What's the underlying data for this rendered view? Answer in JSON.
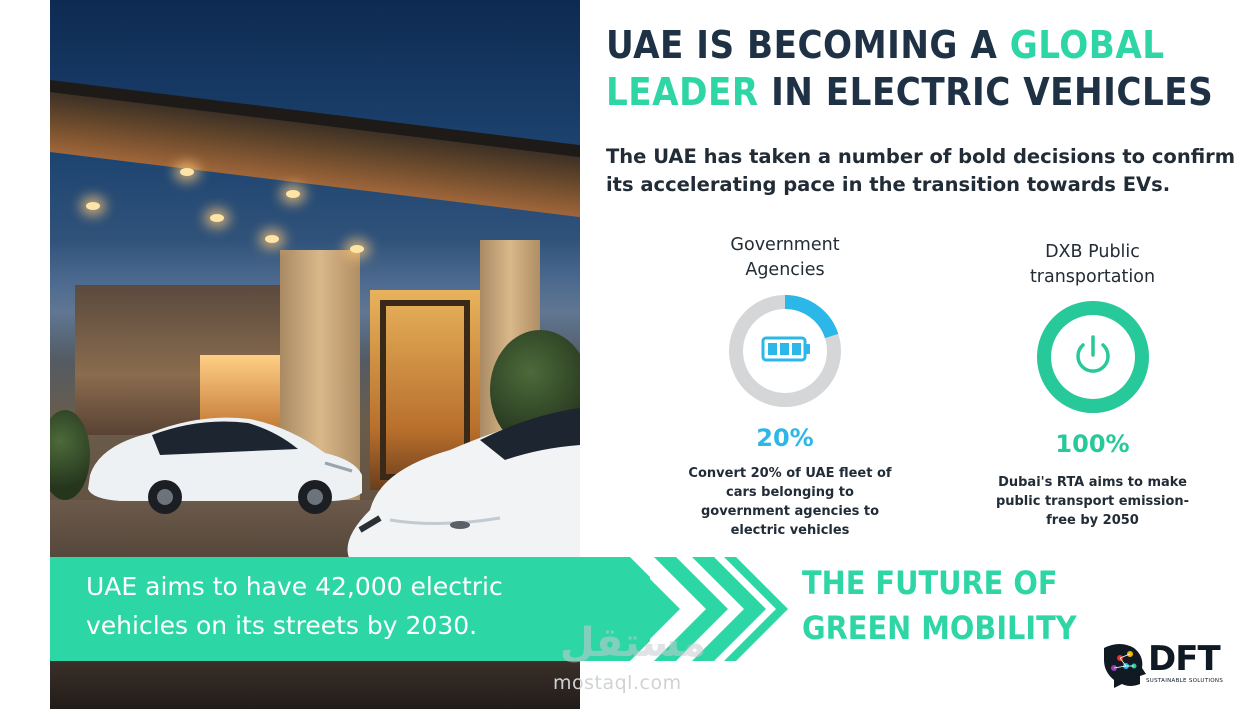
{
  "headline": {
    "part1": "UAE IS BECOMING A ",
    "accent1": "GLOBAL",
    "accent2": "LEADER",
    "part2": " IN ELECTRIC VEHICLES"
  },
  "subtitle": "The UAE has taken a number of bold decisions to confirm its accelerating pace in the transition towards EVs.",
  "stats": [
    {
      "title": "Government Agencies",
      "value": "20%",
      "progress": 0.2,
      "icon": "battery-icon",
      "description": "Convert 20% of UAE fleet of cars belonging to government agencies to electric vehicles",
      "color": "#2bb8e8"
    },
    {
      "title": "DXB Public transportation",
      "value": "100%",
      "progress": 1.0,
      "icon": "power-icon",
      "description": "Dubai's RTA aims to make public transport emission-free by 2050",
      "color": "#27c99a"
    }
  ],
  "banner": {
    "text": "UAE aims to have 42,000 electric vehicles on its streets by 2030."
  },
  "future": {
    "line1": "THE FUTURE OF",
    "line2": "GREEN MOBILITY"
  },
  "watermark": {
    "arabic": "مستقل",
    "domain": "mostaql.com"
  },
  "logo": {
    "name": "DFT",
    "tagline": "SUSTAINABLE SOLUTIONS"
  },
  "colors": {
    "accent_green": "#2ed6a6",
    "accent_blue": "#2bb8e8",
    "navy": "#1f3245"
  }
}
